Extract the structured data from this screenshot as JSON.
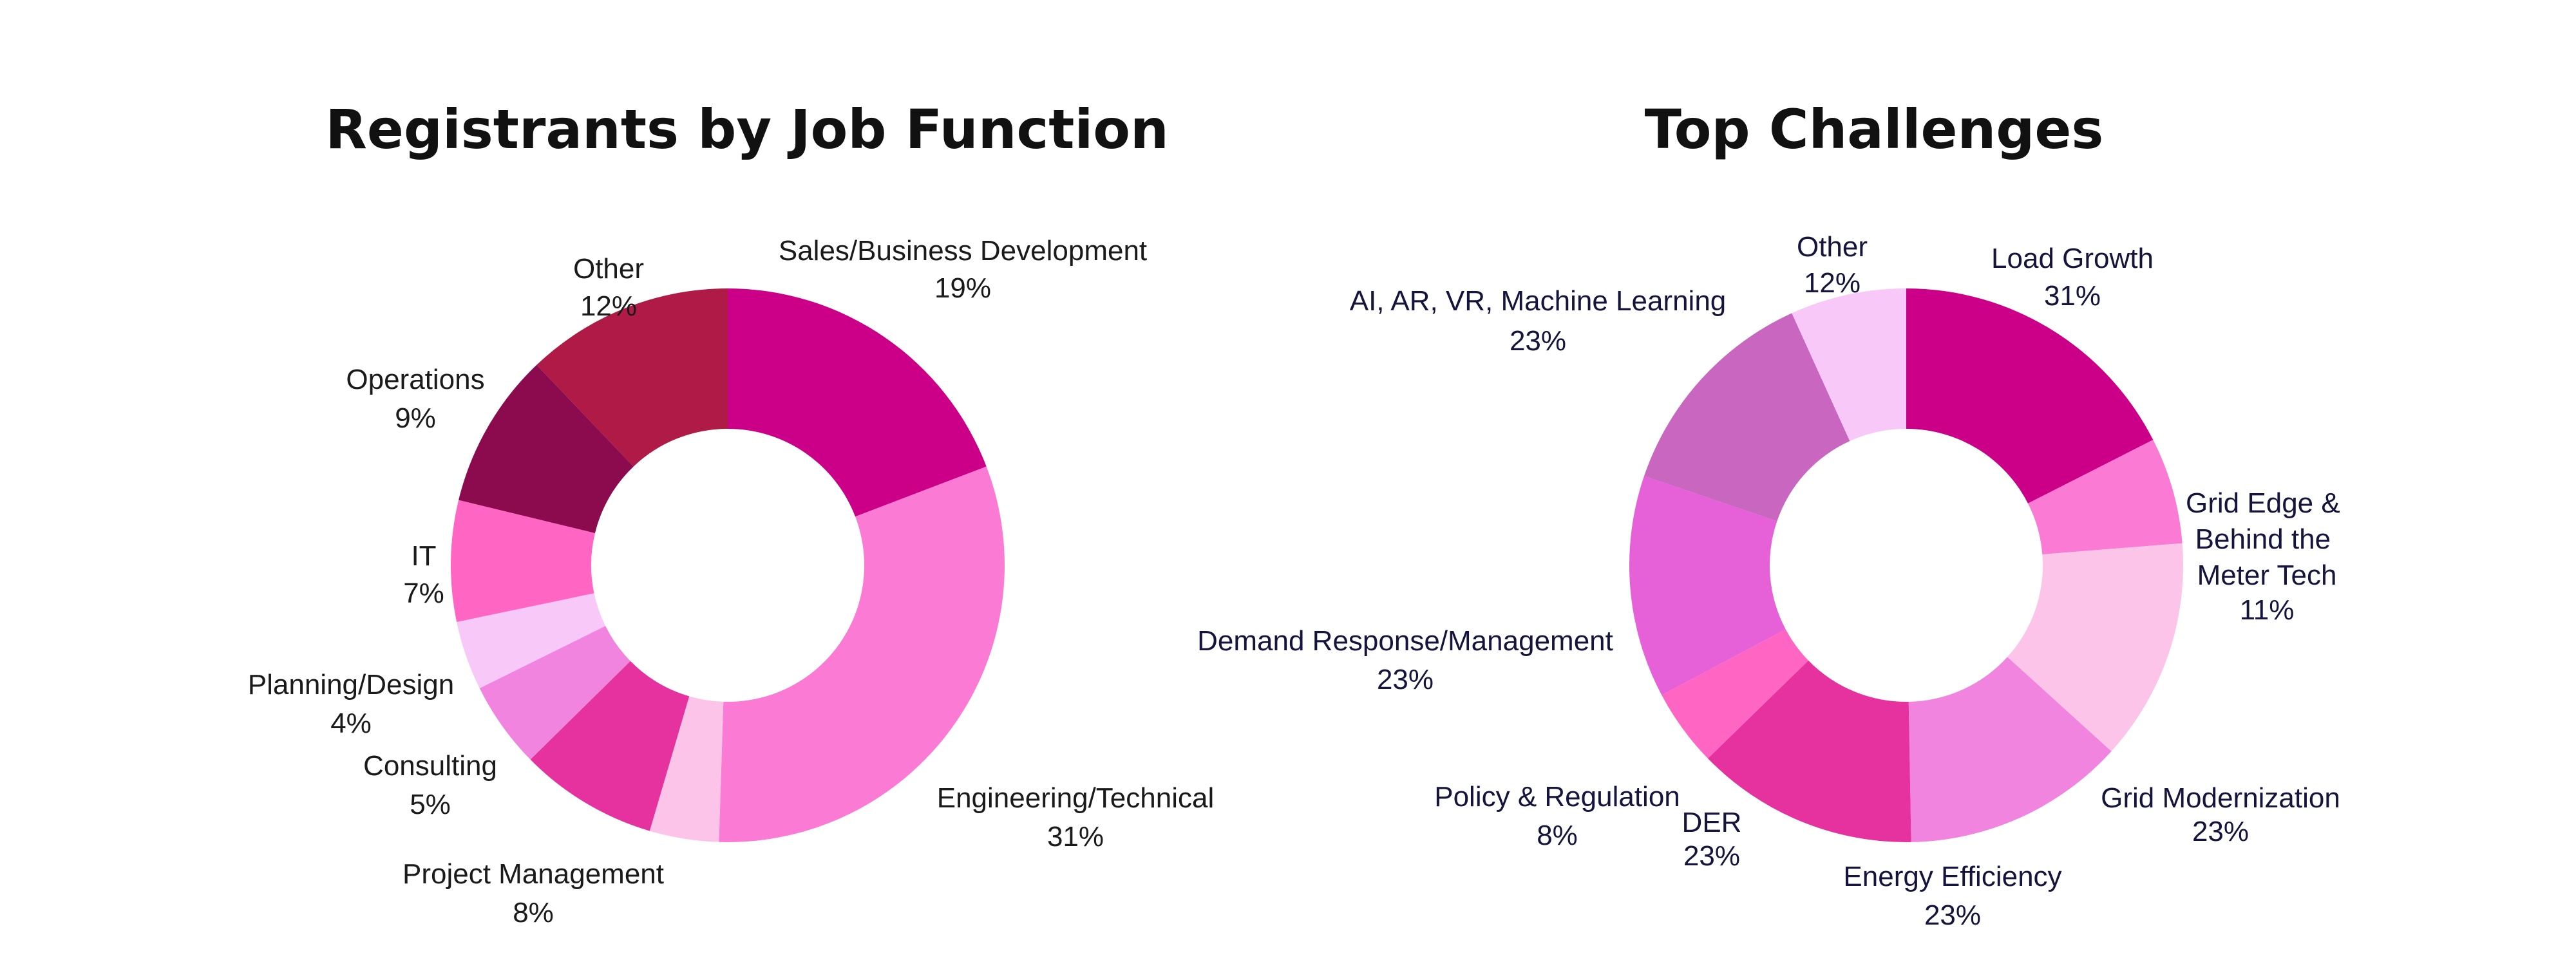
{
  "chart_data": [
    {
      "type": "pie",
      "donut": true,
      "title": "Registrants by Job Function",
      "slices": [
        {
          "label": "Sales/Business Development",
          "pct_text": "19%",
          "value": 19,
          "color": "#CC0088"
        },
        {
          "label": "Engineering/Technical",
          "pct_text": "31%",
          "value": 31,
          "color": "#FB7AD4"
        },
        {
          "label": "",
          "pct_text": "",
          "value": 4,
          "color": "#FDC4E9"
        },
        {
          "label": "Project Management",
          "pct_text": "8%",
          "value": 8,
          "color": "#E6329E"
        },
        {
          "label": "Consulting",
          "pct_text": "5%",
          "value": 5,
          "color": "#F084DE"
        },
        {
          "label": "Planning/Design",
          "pct_text": "4%",
          "value": 4,
          "color": "#F8C8F8"
        },
        {
          "label": "IT",
          "pct_text": "7%",
          "value": 7,
          "color": "#FF66C4"
        },
        {
          "label": "Operations",
          "pct_text": "9%",
          "value": 9,
          "color": "#8C0A4E"
        },
        {
          "label": "Other",
          "pct_text": "12%",
          "value": 12,
          "color": "#AF1A46"
        }
      ]
    },
    {
      "type": "pie",
      "donut": true,
      "title": "Top Challenges",
      "slices": [
        {
          "label": "Load Growth",
          "pct_text": "31%",
          "value": 31,
          "color": "#CC0088"
        },
        {
          "label": "Grid Edge & Behind the Meter Tech",
          "pct_text": "11%",
          "value": 11,
          "color": "#FB7AD4"
        },
        {
          "label": "Grid Modernization",
          "pct_text": "23%",
          "value": 23,
          "color": "#FDC4E9"
        },
        {
          "label": "Energy Efficiency",
          "pct_text": "23%",
          "value": 23,
          "color": "#F084DE"
        },
        {
          "label": "DER",
          "pct_text": "23%",
          "value": 23,
          "color": "#E6329E"
        },
        {
          "label": "Policy & Regulation",
          "pct_text": "8%",
          "value": 8,
          "color": "#FF66C4"
        },
        {
          "label": "Demand Response/Management",
          "pct_text": "23%",
          "value": 23,
          "color": "#E660D8"
        },
        {
          "label": "AI, AR, VR, Machine Learning",
          "pct_text": "23%",
          "value": 23,
          "color": "#C866C0"
        },
        {
          "label": "Other",
          "pct_text": "12%",
          "value": 12,
          "color": "#F8C8F8"
        }
      ]
    }
  ]
}
